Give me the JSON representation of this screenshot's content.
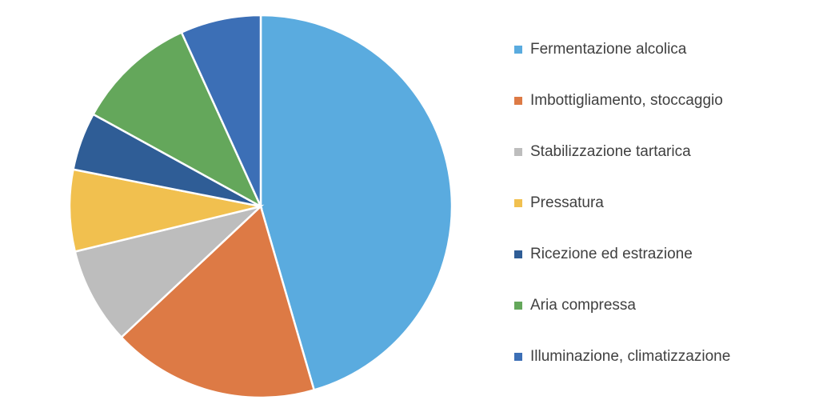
{
  "chart_data": {
    "type": "pie",
    "categories": [
      "Fermentazione alcolica",
      "Imbottigliamento, stoccaggio",
      "Stabilizzazione tartarica",
      "Pressatura",
      "Ricezione ed estrazione",
      "Aria compressa",
      "Illuminazione, climatizzazione"
    ],
    "values": [
      45.5,
      17.5,
      8.2,
      6.9,
      4.9,
      10.2,
      6.8
    ],
    "colors": [
      "#5aabdf",
      "#dd7a45",
      "#bdbdbd",
      "#f1c04f",
      "#2f5d96",
      "#64a75b",
      "#3c6fb6"
    ]
  }
}
